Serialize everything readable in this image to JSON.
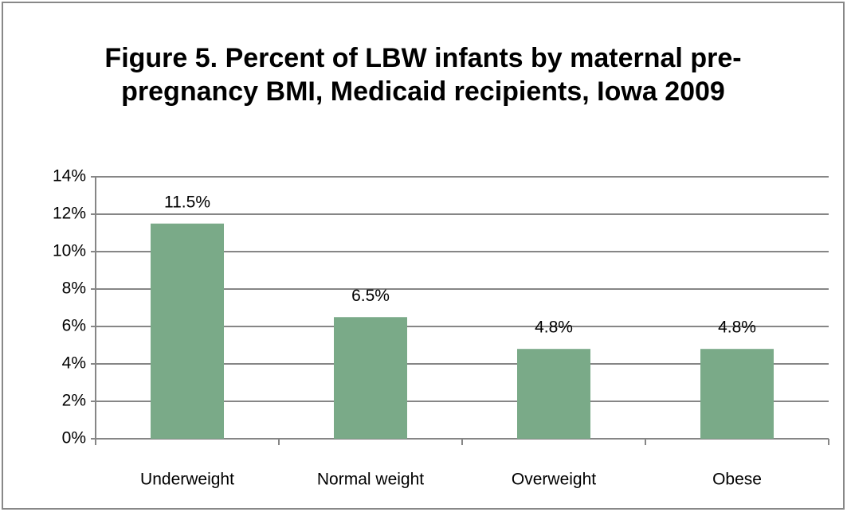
{
  "chart_data": {
    "type": "bar",
    "title": "Figure 5. Percent of LBW infants by maternal pre-pregnancy BMI, Medicaid recipients, Iowa 2009",
    "categories": [
      "Underweight",
      "Normal weight",
      "Overweight",
      "Obese"
    ],
    "values": [
      11.5,
      6.5,
      4.8,
      4.8
    ],
    "value_labels": [
      "11.5%",
      "6.5%",
      "4.8%",
      "4.8%"
    ],
    "color": "#7aaa88",
    "ylim": [
      0,
      14
    ],
    "yticks": [
      {
        "value": 0,
        "label": "0%"
      },
      {
        "value": 2,
        "label": "2%"
      },
      {
        "value": 4,
        "label": "4%"
      },
      {
        "value": 6,
        "label": "6%"
      },
      {
        "value": 8,
        "label": "8%"
      },
      {
        "value": 10,
        "label": "10%"
      },
      {
        "value": 12,
        "label": "12%"
      },
      {
        "value": 14,
        "label": "14%"
      }
    ],
    "grid": true
  }
}
